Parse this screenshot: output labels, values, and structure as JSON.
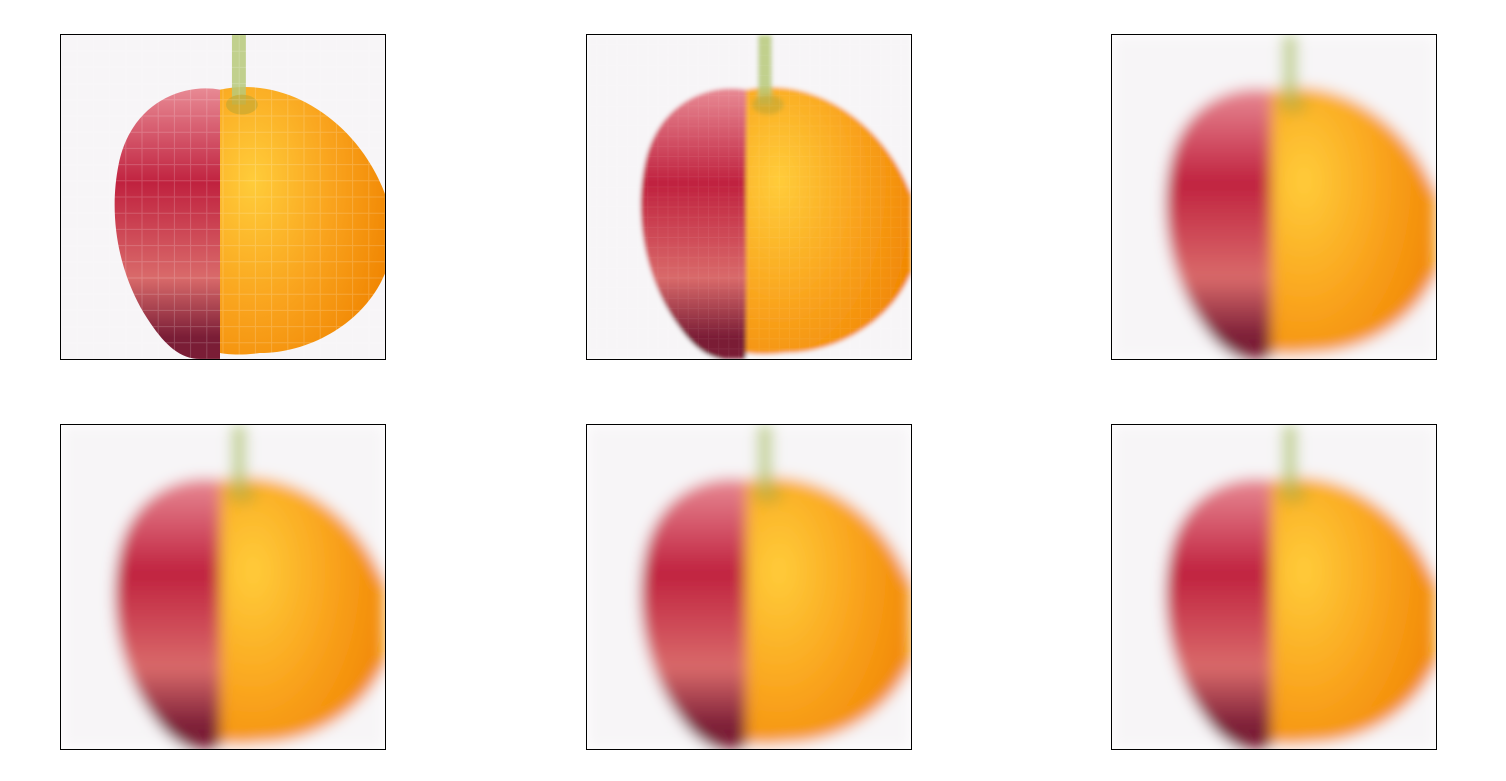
{
  "figure": {
    "subject": "apple-orange-half-split",
    "panels": [
      {
        "id": "p0",
        "interpolation": "nearest",
        "grid": 20
      },
      {
        "id": "p1",
        "interpolation": "bilinear",
        "grid": 32
      },
      {
        "id": "p2",
        "interpolation": "smooth"
      },
      {
        "id": "p3",
        "interpolation": "smooth"
      },
      {
        "id": "p4",
        "interpolation": "smooth"
      },
      {
        "id": "p5",
        "interpolation": "smooth"
      }
    ],
    "colors": {
      "background": "#f7f5f7",
      "apple_light": "#d96a6a",
      "apple_dark": "#c0223f",
      "apple_bottom": "#7a1d36",
      "orange_light": "#ffcc3a",
      "orange_mid": "#f9a21c",
      "orange_dark": "#f08400",
      "stem": "#b7c97a",
      "frame": "#000000"
    }
  }
}
